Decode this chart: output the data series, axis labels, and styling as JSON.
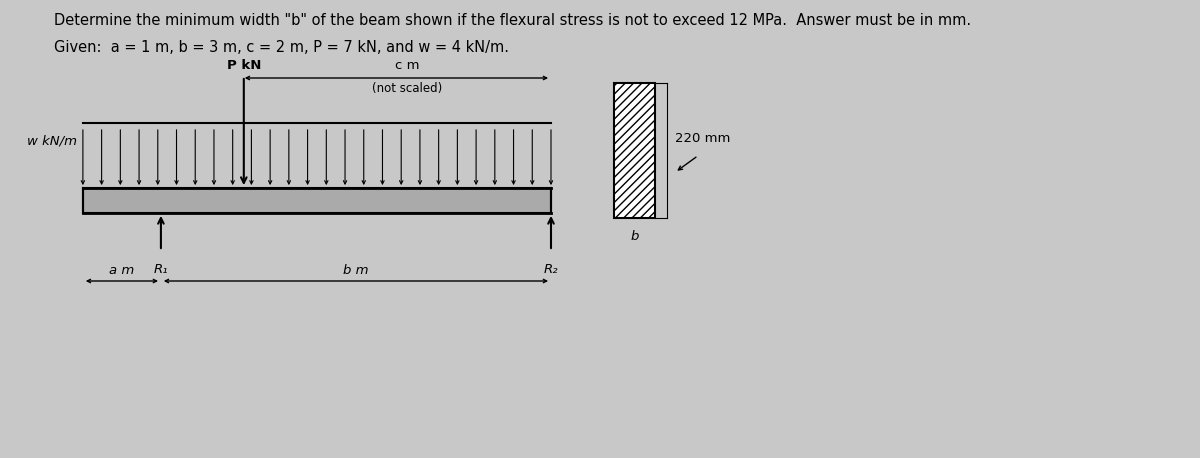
{
  "title_line1": "Determine the minimum width \"b\" of the beam shown if the flexural stress is not to exceed 12 MPa.  Answer must be in mm.",
  "title_line2": "Given:  a = 1 m, b = 3 m, c = 2 m, P = 7 kN, and w = 4 kN/m.",
  "bg_color": "#c8c8c8",
  "text_color": "#000000",
  "label_P": "P kN",
  "label_w": "w kN/m",
  "label_c": "c m",
  "label_not_scaled": "(not scaled)",
  "label_am": "a m",
  "label_bm": "b m",
  "label_R1": "R₁",
  "label_R2": "R₂",
  "label_220": "220 mm",
  "label_b": "b",
  "font_size_title": 10.5,
  "font_size_labels": 9.5,
  "font_size_small": 8.5
}
